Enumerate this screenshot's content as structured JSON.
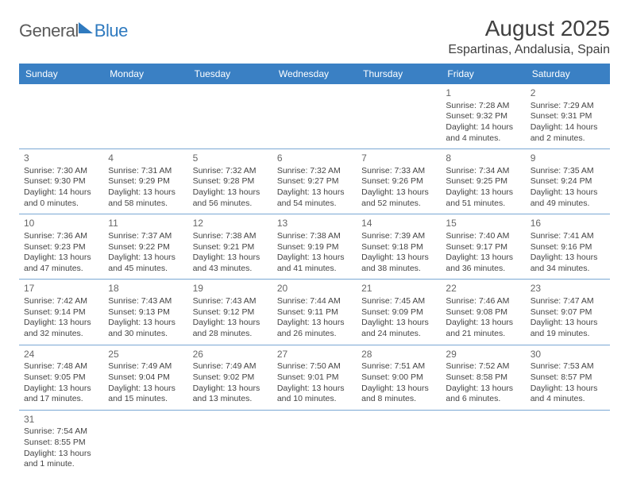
{
  "brand": {
    "part1": "General",
    "part2": "Blue"
  },
  "title": "August 2025",
  "location": "Espartinas, Andalusia, Spain",
  "colors": {
    "header_bg": "#3a80c4",
    "header_text": "#ffffff",
    "border": "#7aa8d4",
    "body_text": "#444444",
    "brand_gray": "#5a5a5a",
    "brand_blue": "#2f7abf"
  },
  "weekdays": [
    "Sunday",
    "Monday",
    "Tuesday",
    "Wednesday",
    "Thursday",
    "Friday",
    "Saturday"
  ],
  "weeks": [
    [
      null,
      null,
      null,
      null,
      null,
      {
        "n": "1",
        "sr": "Sunrise: 7:28 AM",
        "ss": "Sunset: 9:32 PM",
        "d1": "Daylight: 14 hours",
        "d2": "and 4 minutes."
      },
      {
        "n": "2",
        "sr": "Sunrise: 7:29 AM",
        "ss": "Sunset: 9:31 PM",
        "d1": "Daylight: 14 hours",
        "d2": "and 2 minutes."
      }
    ],
    [
      {
        "n": "3",
        "sr": "Sunrise: 7:30 AM",
        "ss": "Sunset: 9:30 PM",
        "d1": "Daylight: 14 hours",
        "d2": "and 0 minutes."
      },
      {
        "n": "4",
        "sr": "Sunrise: 7:31 AM",
        "ss": "Sunset: 9:29 PM",
        "d1": "Daylight: 13 hours",
        "d2": "and 58 minutes."
      },
      {
        "n": "5",
        "sr": "Sunrise: 7:32 AM",
        "ss": "Sunset: 9:28 PM",
        "d1": "Daylight: 13 hours",
        "d2": "and 56 minutes."
      },
      {
        "n": "6",
        "sr": "Sunrise: 7:32 AM",
        "ss": "Sunset: 9:27 PM",
        "d1": "Daylight: 13 hours",
        "d2": "and 54 minutes."
      },
      {
        "n": "7",
        "sr": "Sunrise: 7:33 AM",
        "ss": "Sunset: 9:26 PM",
        "d1": "Daylight: 13 hours",
        "d2": "and 52 minutes."
      },
      {
        "n": "8",
        "sr": "Sunrise: 7:34 AM",
        "ss": "Sunset: 9:25 PM",
        "d1": "Daylight: 13 hours",
        "d2": "and 51 minutes."
      },
      {
        "n": "9",
        "sr": "Sunrise: 7:35 AM",
        "ss": "Sunset: 9:24 PM",
        "d1": "Daylight: 13 hours",
        "d2": "and 49 minutes."
      }
    ],
    [
      {
        "n": "10",
        "sr": "Sunrise: 7:36 AM",
        "ss": "Sunset: 9:23 PM",
        "d1": "Daylight: 13 hours",
        "d2": "and 47 minutes."
      },
      {
        "n": "11",
        "sr": "Sunrise: 7:37 AM",
        "ss": "Sunset: 9:22 PM",
        "d1": "Daylight: 13 hours",
        "d2": "and 45 minutes."
      },
      {
        "n": "12",
        "sr": "Sunrise: 7:38 AM",
        "ss": "Sunset: 9:21 PM",
        "d1": "Daylight: 13 hours",
        "d2": "and 43 minutes."
      },
      {
        "n": "13",
        "sr": "Sunrise: 7:38 AM",
        "ss": "Sunset: 9:19 PM",
        "d1": "Daylight: 13 hours",
        "d2": "and 41 minutes."
      },
      {
        "n": "14",
        "sr": "Sunrise: 7:39 AM",
        "ss": "Sunset: 9:18 PM",
        "d1": "Daylight: 13 hours",
        "d2": "and 38 minutes."
      },
      {
        "n": "15",
        "sr": "Sunrise: 7:40 AM",
        "ss": "Sunset: 9:17 PM",
        "d1": "Daylight: 13 hours",
        "d2": "and 36 minutes."
      },
      {
        "n": "16",
        "sr": "Sunrise: 7:41 AM",
        "ss": "Sunset: 9:16 PM",
        "d1": "Daylight: 13 hours",
        "d2": "and 34 minutes."
      }
    ],
    [
      {
        "n": "17",
        "sr": "Sunrise: 7:42 AM",
        "ss": "Sunset: 9:14 PM",
        "d1": "Daylight: 13 hours",
        "d2": "and 32 minutes."
      },
      {
        "n": "18",
        "sr": "Sunrise: 7:43 AM",
        "ss": "Sunset: 9:13 PM",
        "d1": "Daylight: 13 hours",
        "d2": "and 30 minutes."
      },
      {
        "n": "19",
        "sr": "Sunrise: 7:43 AM",
        "ss": "Sunset: 9:12 PM",
        "d1": "Daylight: 13 hours",
        "d2": "and 28 minutes."
      },
      {
        "n": "20",
        "sr": "Sunrise: 7:44 AM",
        "ss": "Sunset: 9:11 PM",
        "d1": "Daylight: 13 hours",
        "d2": "and 26 minutes."
      },
      {
        "n": "21",
        "sr": "Sunrise: 7:45 AM",
        "ss": "Sunset: 9:09 PM",
        "d1": "Daylight: 13 hours",
        "d2": "and 24 minutes."
      },
      {
        "n": "22",
        "sr": "Sunrise: 7:46 AM",
        "ss": "Sunset: 9:08 PM",
        "d1": "Daylight: 13 hours",
        "d2": "and 21 minutes."
      },
      {
        "n": "23",
        "sr": "Sunrise: 7:47 AM",
        "ss": "Sunset: 9:07 PM",
        "d1": "Daylight: 13 hours",
        "d2": "and 19 minutes."
      }
    ],
    [
      {
        "n": "24",
        "sr": "Sunrise: 7:48 AM",
        "ss": "Sunset: 9:05 PM",
        "d1": "Daylight: 13 hours",
        "d2": "and 17 minutes."
      },
      {
        "n": "25",
        "sr": "Sunrise: 7:49 AM",
        "ss": "Sunset: 9:04 PM",
        "d1": "Daylight: 13 hours",
        "d2": "and 15 minutes."
      },
      {
        "n": "26",
        "sr": "Sunrise: 7:49 AM",
        "ss": "Sunset: 9:02 PM",
        "d1": "Daylight: 13 hours",
        "d2": "and 13 minutes."
      },
      {
        "n": "27",
        "sr": "Sunrise: 7:50 AM",
        "ss": "Sunset: 9:01 PM",
        "d1": "Daylight: 13 hours",
        "d2": "and 10 minutes."
      },
      {
        "n": "28",
        "sr": "Sunrise: 7:51 AM",
        "ss": "Sunset: 9:00 PM",
        "d1": "Daylight: 13 hours",
        "d2": "and 8 minutes."
      },
      {
        "n": "29",
        "sr": "Sunrise: 7:52 AM",
        "ss": "Sunset: 8:58 PM",
        "d1": "Daylight: 13 hours",
        "d2": "and 6 minutes."
      },
      {
        "n": "30",
        "sr": "Sunrise: 7:53 AM",
        "ss": "Sunset: 8:57 PM",
        "d1": "Daylight: 13 hours",
        "d2": "and 4 minutes."
      }
    ],
    [
      {
        "n": "31",
        "sr": "Sunrise: 7:54 AM",
        "ss": "Sunset: 8:55 PM",
        "d1": "Daylight: 13 hours",
        "d2": "and 1 minute."
      },
      null,
      null,
      null,
      null,
      null,
      null
    ]
  ]
}
